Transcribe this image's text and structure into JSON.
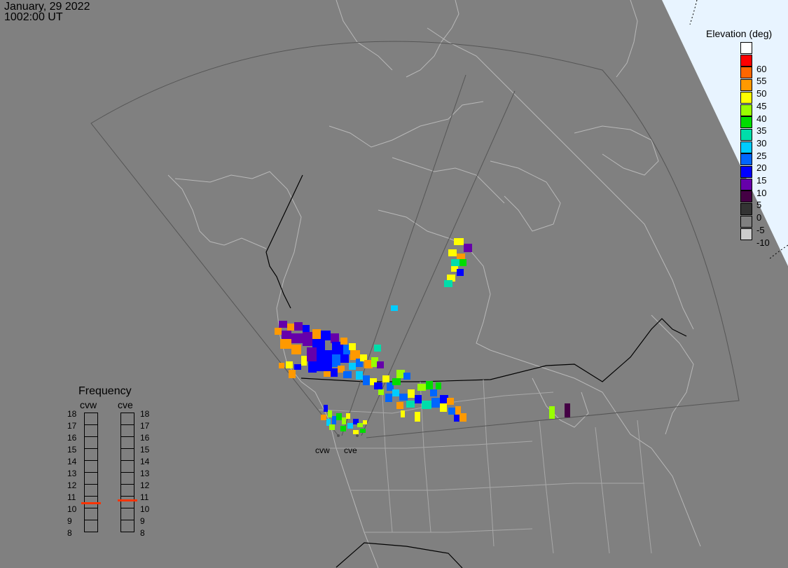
{
  "header": {
    "date": "January, 29 2022",
    "time": "1002:00 UT"
  },
  "colorbar": {
    "title": "Elevation (deg)",
    "entries": [
      {
        "label": "",
        "color": "#ffffff"
      },
      {
        "label": "60",
        "color": "#ff0000"
      },
      {
        "label": "55",
        "color": "#ff6600"
      },
      {
        "label": "50",
        "color": "#ff9900"
      },
      {
        "label": "45",
        "color": "#ffff00"
      },
      {
        "label": "40",
        "color": "#99ff00"
      },
      {
        "label": "35",
        "color": "#00dd00"
      },
      {
        "label": "30",
        "color": "#00ddaa"
      },
      {
        "label": "25",
        "color": "#00ccff"
      },
      {
        "label": "20",
        "color": "#0066ff"
      },
      {
        "label": "15",
        "color": "#0000ff"
      },
      {
        "label": "10",
        "color": "#6600aa"
      },
      {
        "label": "5",
        "color": "#440044"
      },
      {
        "label": "0",
        "color": "#333333"
      },
      {
        "label": "-5",
        "color": "#808080"
      },
      {
        "label": "-10",
        "color": "#cccccc"
      }
    ]
  },
  "frequency": {
    "title": "Frequency",
    "radars": [
      "cvw",
      "cve"
    ],
    "scale": [
      "18",
      "17",
      "16",
      "15",
      "14",
      "13",
      "12",
      "11",
      "10",
      "9",
      "8"
    ],
    "values": [
      10.5,
      10.7
    ]
  },
  "sites": [
    "cvw",
    "cve"
  ],
  "colors": {
    "background": "#808080",
    "coast": "#b8b8b8",
    "fov": "#555555",
    "border": "#000000"
  }
}
